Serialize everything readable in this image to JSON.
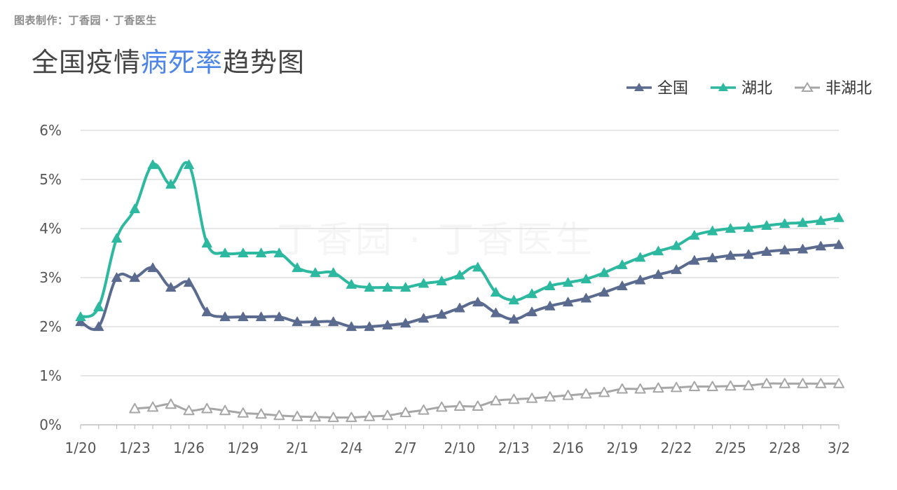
{
  "header": {
    "credit": "图表制作：丁香园 · 丁香医生",
    "title_before": "全国疫情",
    "title_highlight": "病死率",
    "title_after": "趋势图"
  },
  "watermark": "丁香园 · 丁香医生",
  "colors": {
    "national": "#5a6b8f",
    "hubei": "#2db8a0",
    "non_hubei": "#a6a6a6",
    "highlight": "#4d86e8",
    "grid": "#dddddd"
  },
  "chart_data": {
    "type": "line",
    "title": "全国疫情病死率趋势图",
    "xlabel": "",
    "ylabel": "",
    "ylim": [
      0,
      6
    ],
    "y_ticks": [
      "0%",
      "1%",
      "2%",
      "3%",
      "4%",
      "5%",
      "6%"
    ],
    "x": [
      "1/20",
      "1/21",
      "1/22",
      "1/23",
      "1/24",
      "1/25",
      "1/26",
      "1/27",
      "1/28",
      "1/29",
      "1/30",
      "1/31",
      "2/1",
      "2/2",
      "2/3",
      "2/4",
      "2/5",
      "2/6",
      "2/7",
      "2/8",
      "2/9",
      "2/10",
      "2/11",
      "2/12",
      "2/13",
      "2/14",
      "2/15",
      "2/16",
      "2/17",
      "2/18",
      "2/19",
      "2/20",
      "2/21",
      "2/22",
      "2/23",
      "2/24",
      "2/25",
      "2/26",
      "2/27",
      "2/28",
      "2/29",
      "3/1",
      "3/2"
    ],
    "x_tick_labels": [
      "1/20",
      "1/23",
      "1/26",
      "1/29",
      "2/1",
      "2/4",
      "2/7",
      "2/10",
      "2/13",
      "2/16",
      "2/19",
      "2/22",
      "2/25",
      "2/28",
      "3/2"
    ],
    "legend_position": "top-right",
    "grid": true,
    "series": [
      {
        "name": "全国",
        "marker": "filled-triangle",
        "values": [
          2.1,
          2.0,
          3.0,
          3.0,
          3.2,
          2.8,
          2.9,
          2.3,
          2.2,
          2.2,
          2.2,
          2.2,
          2.1,
          2.1,
          2.1,
          2.0,
          2.0,
          2.03,
          2.07,
          2.17,
          2.25,
          2.38,
          2.5,
          2.28,
          2.15,
          2.3,
          2.42,
          2.5,
          2.58,
          2.7,
          2.83,
          2.95,
          3.06,
          3.16,
          3.35,
          3.4,
          3.45,
          3.47,
          3.53,
          3.56,
          3.58,
          3.64,
          3.67
        ]
      },
      {
        "name": "湖北",
        "marker": "filled-triangle",
        "values": [
          2.2,
          2.4,
          3.8,
          4.4,
          5.3,
          4.9,
          5.3,
          3.7,
          3.5,
          3.5,
          3.5,
          3.5,
          3.2,
          3.1,
          3.1,
          2.86,
          2.8,
          2.8,
          2.8,
          2.88,
          2.93,
          3.05,
          3.21,
          2.7,
          2.54,
          2.67,
          2.83,
          2.9,
          2.97,
          3.1,
          3.26,
          3.41,
          3.54,
          3.65,
          3.86,
          3.95,
          4.0,
          4.02,
          4.06,
          4.1,
          4.12,
          4.16,
          4.22
        ]
      },
      {
        "name": "非湖北",
        "marker": "hollow-triangle",
        "values": [
          null,
          null,
          null,
          0.33,
          0.36,
          0.42,
          0.29,
          0.33,
          0.29,
          0.24,
          0.22,
          0.19,
          0.17,
          0.16,
          0.15,
          0.15,
          0.17,
          0.19,
          0.25,
          0.3,
          0.36,
          0.38,
          0.38,
          0.49,
          0.52,
          0.54,
          0.57,
          0.6,
          0.63,
          0.66,
          0.73,
          0.73,
          0.75,
          0.76,
          0.78,
          0.78,
          0.79,
          0.8,
          0.84,
          0.84,
          0.84,
          0.84,
          0.84
        ]
      }
    ]
  }
}
